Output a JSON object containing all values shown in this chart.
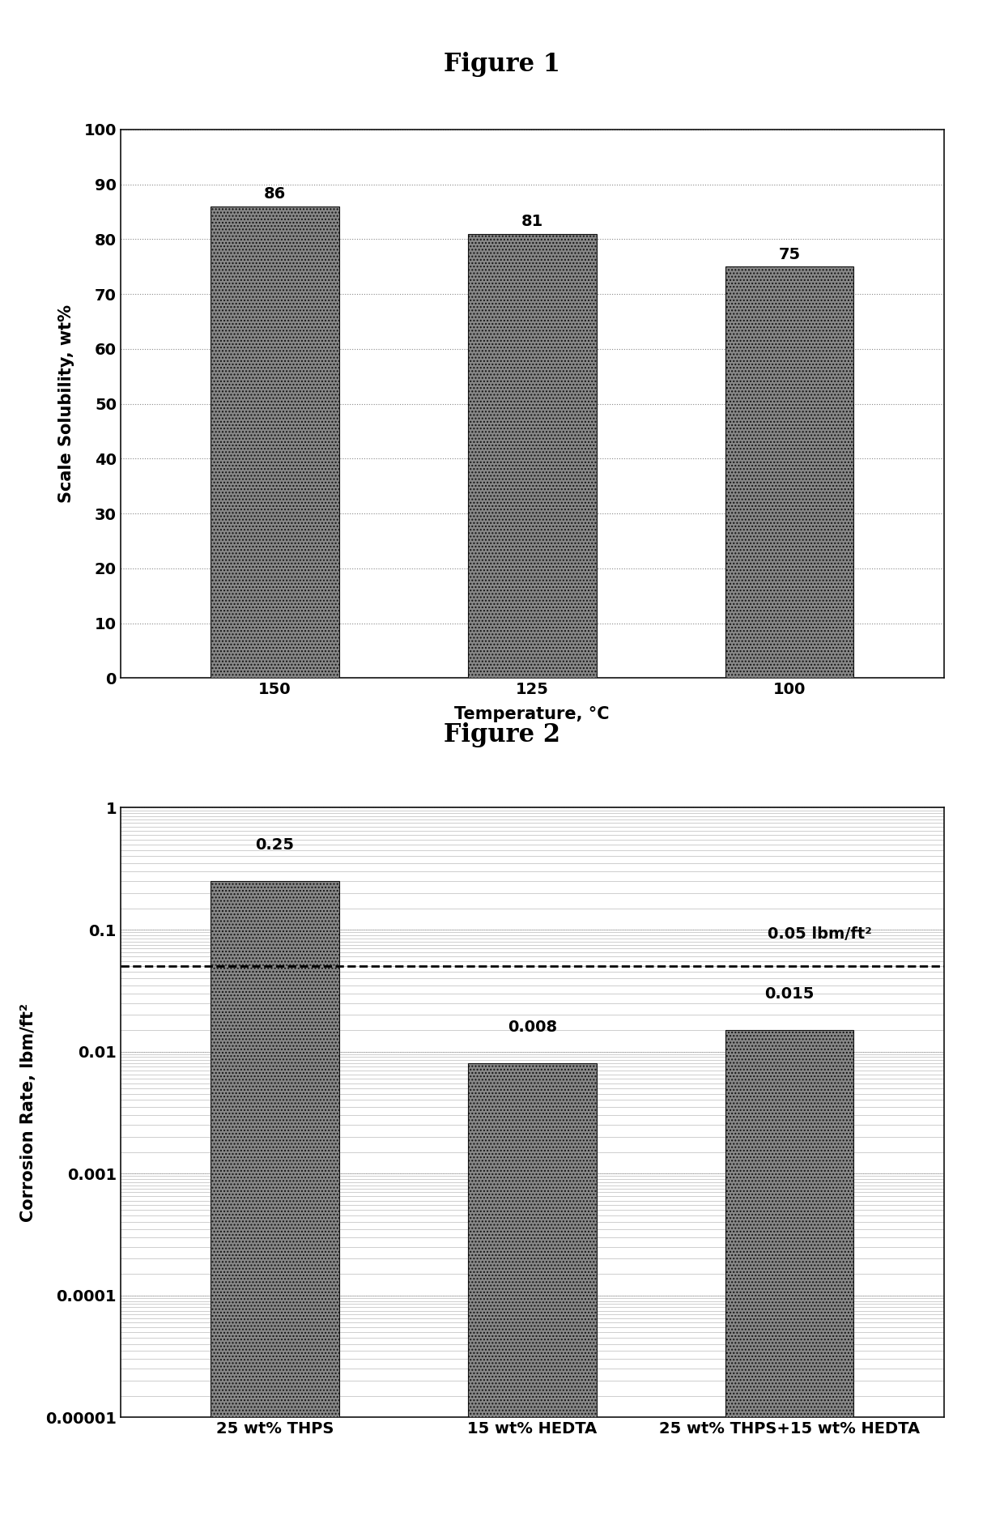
{
  "fig1_title": "Figure 1",
  "fig1_categories": [
    "150",
    "125",
    "100"
  ],
  "fig1_values": [
    86,
    81,
    75
  ],
  "fig1_xlabel": "Temperature, °C",
  "fig1_ylabel": "Scale Solubility, wt%",
  "fig1_ylim": [
    0,
    100
  ],
  "fig1_yticks": [
    0,
    10,
    20,
    30,
    40,
    50,
    60,
    70,
    80,
    90,
    100
  ],
  "fig2_title": "Figure 2",
  "fig2_categories": [
    "25 wt% THPS",
    "15 wt% HEDTA",
    "25 wt% THPS+15 wt% HEDTA"
  ],
  "fig2_values": [
    0.25,
    0.008,
    0.015
  ],
  "fig2_ylabel": "Corrosion Rate, lbm/ft²",
  "fig2_ylim": [
    1e-05,
    1
  ],
  "fig2_dashed_line": 0.05,
  "fig2_dashed_label": "0.05 lbm/ft²",
  "bar_color": "#888888",
  "bar_edgecolor": "#111111",
  "hatch_pattern": "....",
  "background_color": "#ffffff",
  "plot_bg_color": "#ffffff",
  "grid_color": "#888888",
  "title_fontsize": 22,
  "label_fontsize": 15,
  "tick_fontsize": 14,
  "bar_label_fontsize": 14,
  "figure_width": 12.4,
  "figure_height": 18.82
}
